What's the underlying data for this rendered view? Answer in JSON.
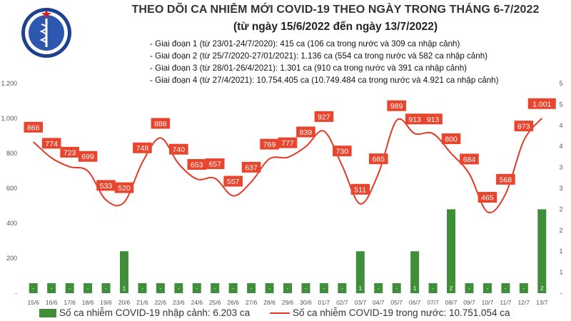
{
  "logo": {
    "text_top": "BỘ Y TẾ",
    "text_bottom": "MINISTRY OF HEALTH"
  },
  "header": {
    "title": "THEO DÕI CA NHIỄM MỚI COVID-19 THEO NGÀY TRONG THÁNG 6-7/2022",
    "subtitle": "(từ ngày 15/6/2022 đến ngày 13/7/2022)"
  },
  "stages": [
    "- Giai đoạn 1 (từ 23/01-24/7/2020): 415 ca (106 ca trong nước và 309 ca nhập cảnh)",
    "- Giai đoạn 2 (từ 25/7/2020-27/01/2021): 1.136 ca (554 ca trong nước và 582 ca nhập cảnh)",
    "- Giai đoạn 3 (từ 28/01-26/4/2021): 1.301 ca (910 ca trong nước và 391 ca nhập cảnh)",
    "- Giai đoạn 4 (từ 27/4/2021): 10.754.405 ca (10.749.484 ca trong nước và 4.921 ca nhập cảnh)"
  ],
  "legend": {
    "bars": "Số ca nhiễm COVID-19 nhập cảnh: 6.203 ca",
    "line": "Số ca nhiễm COVID-19 trong nước: 10.751.054 ca"
  },
  "colors": {
    "bar": "#3f8f3a",
    "bar_label": "#ffffff",
    "line": "#e23a27",
    "line_label_bg": "#e8452f",
    "line_label_text": "#ffffff",
    "axis_text": "#555555"
  },
  "chart_data": {
    "type": "bar+line",
    "categories": [
      "15/6",
      "16/6",
      "17/6",
      "18/6",
      "19/6",
      "20/6",
      "21/6",
      "22/6",
      "23/6",
      "24/6",
      "25/6",
      "26/6",
      "27/6",
      "28/6",
      "29/6",
      "30/6",
      "01/7",
      "02/7",
      "03/7",
      "04/7",
      "05/7",
      "06/7",
      "07/7",
      "08/7",
      "09/7",
      "10/7",
      "11/7",
      "12/7",
      "13/7"
    ],
    "left_axis": {
      "ticks": [
        "-",
        "200",
        "400",
        "600",
        "800",
        "1.000",
        "1.200"
      ],
      "lim": [
        0,
        1200
      ]
    },
    "right_axis": {
      "ticks": [
        "-",
        "1",
        "1",
        "2",
        "2",
        "3",
        "3",
        "4",
        "4",
        "5",
        "5"
      ],
      "lim": [
        0,
        5
      ]
    },
    "series": [
      {
        "name": "Số ca nhiễm COVID-19 nhập cảnh",
        "type": "bar",
        "axis": "right",
        "values": [
          0,
          0,
          0,
          0,
          0,
          1,
          0,
          0,
          0,
          0,
          0,
          0,
          0,
          0,
          0,
          0,
          0,
          0,
          1,
          0,
          0,
          1,
          0,
          2,
          0,
          0,
          0,
          0,
          2
        ],
        "labels": [
          "-",
          "-",
          "-",
          "-",
          "-",
          "1",
          "-",
          "-",
          "-",
          "-",
          "-",
          "-",
          "-",
          "-",
          "-",
          "-",
          "-",
          "-",
          "1",
          "-",
          "-",
          "1",
          "-",
          "2",
          "-",
          "-",
          "-",
          "-",
          "2"
        ]
      },
      {
        "name": "Số ca nhiễm COVID-19 trong nước",
        "type": "line",
        "axis": "left",
        "values": [
          866,
          774,
          723,
          699,
          533,
          520,
          748,
          888,
          740,
          653,
          657,
          557,
          637,
          769,
          777,
          839,
          927,
          730,
          511,
          685,
          989,
          913,
          913,
          800,
          684,
          465,
          568,
          873,
          1001
        ],
        "labels": [
          "866",
          "774",
          "723",
          "699",
          "533",
          "520",
          "748",
          "888",
          "740",
          "653",
          "657",
          "557",
          "637",
          "769",
          "777",
          "839",
          "927",
          "730",
          "511",
          "685",
          "989",
          "913",
          "913",
          "800",
          "684",
          "465",
          "568",
          "873",
          "1.001"
        ]
      }
    ]
  }
}
